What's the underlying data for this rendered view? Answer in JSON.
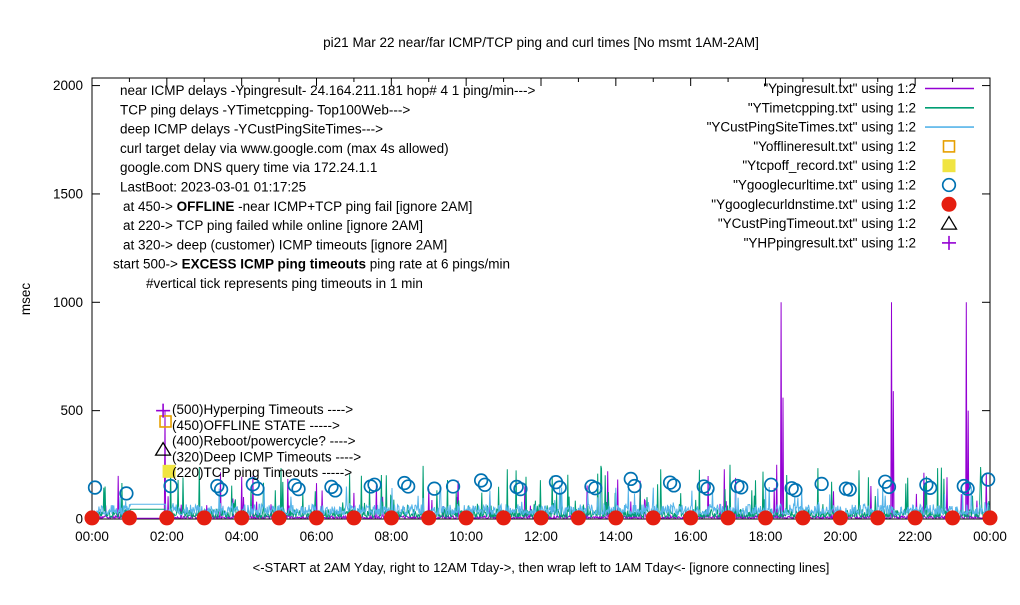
{
  "chart_data": {
    "type": "line",
    "title": "pi21 Mar 22  near/far ICMP/TCP ping and curl times [No msmt 1AM-2AM]",
    "ylabel": "msec",
    "xlabel": "<-START at 2AM Yday, right to 12AM Tday->, then wrap left to 1AM Tday<- [ignore connecting lines]",
    "x_unit": "hours_of_day",
    "xlim": [
      0,
      24
    ],
    "ylim": [
      0,
      2035
    ],
    "grid": false,
    "legend_position": "top-right-inside",
    "axis": {
      "yticks": [
        0,
        500,
        1000,
        1500,
        2000
      ],
      "xticks": [
        {
          "h": 0,
          "label": "00:00"
        },
        {
          "h": 2,
          "label": "02:00"
        },
        {
          "h": 4,
          "label": "04:00"
        },
        {
          "h": 6,
          "label": "06:00"
        },
        {
          "h": 8,
          "label": "08:00"
        },
        {
          "h": 10,
          "label": "10:00"
        },
        {
          "h": 12,
          "label": "12:00"
        },
        {
          "h": 14,
          "label": "14:00"
        },
        {
          "h": 16,
          "label": "16:00"
        },
        {
          "h": 18,
          "label": "18:00"
        },
        {
          "h": 20,
          "label": "20:00"
        },
        {
          "h": 22,
          "label": "22:00"
        },
        {
          "h": 24,
          "label": "00:00"
        }
      ]
    },
    "no_measurement_gap_hours": [
      1.03,
      1.97
    ],
    "series": [
      {
        "id": "ypingresult",
        "label": "\"Ypingresult.txt\" using 1:2",
        "type": "line",
        "color": "#9400d3",
        "baseline": 3,
        "noise": 12,
        "spike_prob": 0.035,
        "spike_range": [
          60,
          230
        ],
        "gap_value": 3,
        "spikes": [
          [
            1.95,
            500
          ],
          [
            16.9,
            230
          ],
          [
            18.3,
            250
          ],
          [
            18.42,
            1000
          ],
          [
            18.47,
            560
          ],
          [
            21.37,
            1000
          ],
          [
            21.42,
            590
          ],
          [
            23.37,
            1000
          ],
          [
            23.42,
            500
          ],
          [
            23.9,
            210
          ]
        ]
      },
      {
        "id": "ytimetcpping",
        "label": "\"YTimetcpping.txt\" using 1:2",
        "type": "line",
        "color": "#009e73",
        "baseline": 8,
        "noise": 38,
        "spike_prob": 0.06,
        "spike_range": [
          60,
          240
        ],
        "gap_value": 45,
        "spikes": [
          [
            0.35,
            150
          ],
          [
            2.1,
            245
          ],
          [
            2.3,
            180
          ],
          [
            5.05,
            235
          ],
          [
            7.2,
            200
          ],
          [
            8.85,
            245
          ],
          [
            9.5,
            180
          ],
          [
            11.1,
            230
          ],
          [
            12.3,
            200
          ],
          [
            13.6,
            245
          ],
          [
            15.2,
            230
          ],
          [
            17.05,
            250
          ],
          [
            19.4,
            235
          ],
          [
            20.5,
            225
          ],
          [
            21.8,
            190
          ],
          [
            22.6,
            235
          ],
          [
            23.75,
            240
          ]
        ]
      },
      {
        "id": "ycustpingsitetimes",
        "label": "\"YCustPingSiteTimes.txt\" using 1:2",
        "type": "line",
        "color": "#56b4e9",
        "baseline": 20,
        "noise": 48,
        "spike_prob": 0.04,
        "spike_range": [
          60,
          150
        ],
        "gap_value": 68,
        "spikes": [
          [
            3.4,
            140
          ],
          [
            6.8,
            150
          ],
          [
            9.3,
            160
          ],
          [
            12.5,
            155
          ],
          [
            15.0,
            145
          ],
          [
            18.0,
            150
          ],
          [
            21.0,
            140
          ],
          [
            23.5,
            150
          ]
        ]
      },
      {
        "id": "yofflineresult",
        "label": "\"Yofflineresult.txt\" using 1:2",
        "type": "points",
        "marker": "open-square",
        "color": "#e69f00",
        "points": [
          [
            1.965,
            450
          ]
        ]
      },
      {
        "id": "ytcpoff_record",
        "label": "\"Ytcpoff_record.txt\" using 1:2",
        "type": "points",
        "marker": "filled-square",
        "color": "#f0e442",
        "points": [
          [
            2.06,
            220
          ]
        ]
      },
      {
        "id": "ygooglecurltime",
        "label": "\"Ygooglecurltime.txt\" using 1:2",
        "type": "points",
        "marker": "open-circle",
        "color": "#0072b2",
        "points": [
          [
            0.08,
            145
          ],
          [
            0.92,
            118
          ],
          [
            2.1,
            152
          ],
          [
            3.35,
            152
          ],
          [
            3.45,
            136
          ],
          [
            4.3,
            160
          ],
          [
            4.42,
            140
          ],
          [
            5.42,
            155
          ],
          [
            5.52,
            138
          ],
          [
            6.4,
            148
          ],
          [
            6.5,
            132
          ],
          [
            7.45,
            150
          ],
          [
            7.55,
            158
          ],
          [
            8.35,
            166
          ],
          [
            8.45,
            150
          ],
          [
            9.15,
            140
          ],
          [
            9.65,
            150
          ],
          [
            10.4,
            178
          ],
          [
            10.5,
            158
          ],
          [
            11.35,
            148
          ],
          [
            11.45,
            138
          ],
          [
            12.4,
            170
          ],
          [
            12.5,
            145
          ],
          [
            13.35,
            150
          ],
          [
            13.45,
            142
          ],
          [
            14.4,
            185
          ],
          [
            14.5,
            152
          ],
          [
            15.45,
            168
          ],
          [
            15.55,
            155
          ],
          [
            16.35,
            150
          ],
          [
            16.45,
            140
          ],
          [
            17.25,
            152
          ],
          [
            17.35,
            146
          ],
          [
            18.15,
            158
          ],
          [
            18.7,
            142
          ],
          [
            18.8,
            133
          ],
          [
            19.5,
            162
          ],
          [
            20.15,
            140
          ],
          [
            20.25,
            136
          ],
          [
            21.2,
            172
          ],
          [
            21.3,
            148
          ],
          [
            22.3,
            158
          ],
          [
            22.4,
            144
          ],
          [
            23.3,
            152
          ],
          [
            23.4,
            140
          ],
          [
            23.95,
            182
          ]
        ]
      },
      {
        "id": "ygooglecurldnstime",
        "label": "\"Ygooglecurldnstime.txt\" using 1:2",
        "type": "points",
        "marker": "filled-circle",
        "color": "#e51e10",
        "points": [
          [
            0,
            5
          ],
          [
            1,
            5
          ],
          [
            2,
            5
          ],
          [
            3,
            5
          ],
          [
            4,
            5
          ],
          [
            5,
            5
          ],
          [
            6,
            5
          ],
          [
            7,
            5
          ],
          [
            8,
            5
          ],
          [
            9,
            5
          ],
          [
            10,
            5
          ],
          [
            11,
            5
          ],
          [
            12,
            5
          ],
          [
            13,
            5
          ],
          [
            14,
            5
          ],
          [
            15,
            5
          ],
          [
            16,
            5
          ],
          [
            17,
            5
          ],
          [
            18,
            5
          ],
          [
            19,
            5
          ],
          [
            20,
            5
          ],
          [
            21,
            5
          ],
          [
            22,
            5
          ],
          [
            23,
            5
          ],
          [
            24,
            5
          ]
        ]
      },
      {
        "id": "ycustpingtimeout",
        "label": "\"YCustPingTimeout.txt\" using 1:2",
        "type": "points",
        "marker": "open-triangle",
        "color": "#000000",
        "points": [
          [
            1.9,
            320
          ]
        ]
      },
      {
        "id": "yhppingresult",
        "label": "\"YHPpingresult.txt\" using 1:2",
        "type": "points",
        "marker": "plus",
        "color": "#9400d3",
        "points": [
          [
            1.9,
            500
          ]
        ]
      }
    ]
  },
  "info_block": {
    "lines": [
      {
        "indent": 0,
        "parts": [
          {
            "t": "near ICMP delays -Ypingresult- 24.164.211.181 hop# 4 1 ping/min--->",
            "b": false
          }
        ]
      },
      {
        "indent": 0,
        "parts": [
          {
            "t": "TCP ping delays -YTimetcpping- Top100Web--->",
            "b": false
          }
        ]
      },
      {
        "indent": 0,
        "parts": [
          {
            "t": "deep ICMP delays -YCustPingSiteTimes--->",
            "b": false
          }
        ]
      },
      {
        "indent": 0,
        "parts": [
          {
            "t": "curl target delay via www.google.com (max 4s allowed)",
            "b": false
          }
        ]
      },
      {
        "indent": 0,
        "parts": [
          {
            "t": "google.com DNS query time via 172.24.1.1",
            "b": false
          }
        ]
      },
      {
        "indent": 0,
        "parts": [
          {
            "t": "LastBoot: 2023-03-01 01:17:25",
            "b": false
          }
        ]
      },
      {
        "indent": 3,
        "parts": [
          {
            "t": "at 450->  ",
            "b": false
          },
          {
            "t": "OFFLINE",
            "b": true
          },
          {
            "t": " -near ICMP+TCP ping fail [ignore 2AM]",
            "b": false
          }
        ]
      },
      {
        "indent": 3,
        "parts": [
          {
            "t": "at 220-> TCP ping failed while online [ignore 2AM]",
            "b": false
          }
        ]
      },
      {
        "indent": 3,
        "parts": [
          {
            "t": "at 320-> deep (customer) ICMP timeouts [ignore 2AM]",
            "b": false
          }
        ]
      },
      {
        "indent": -7,
        "parts": [
          {
            "t": "start 500->  ",
            "b": false
          },
          {
            "t": "EXCESS ICMP ping timeouts",
            "b": true
          },
          {
            "t": "  ping rate at 6 pings/min",
            "b": false
          }
        ]
      },
      {
        "indent": 26,
        "parts": [
          {
            "t": "#vertical tick represents ping timeouts in 1 min",
            "b": false
          }
        ]
      }
    ]
  },
  "threshold_labels": [
    {
      "text": "(500)Hyperping Timeouts ---->"
    },
    {
      "text": "(450)OFFLINE STATE ----->"
    },
    {
      "text": "(400)Reboot/powercycle? ---->"
    },
    {
      "text": "(320)Deep ICMP Timeouts ---->"
    },
    {
      "text": "(220)TCP ping Timeouts ----->"
    }
  ],
  "colors": {
    "near_icmp": "#9400d3",
    "tcp_ping": "#009e73",
    "deep_icmp": "#56b4e9",
    "offline": "#e69f00",
    "tcpoff": "#f0e442",
    "curl": "#0072b2",
    "dns": "#e51e10",
    "cust_timeout": "#000000",
    "hyperping": "#9400d3"
  }
}
